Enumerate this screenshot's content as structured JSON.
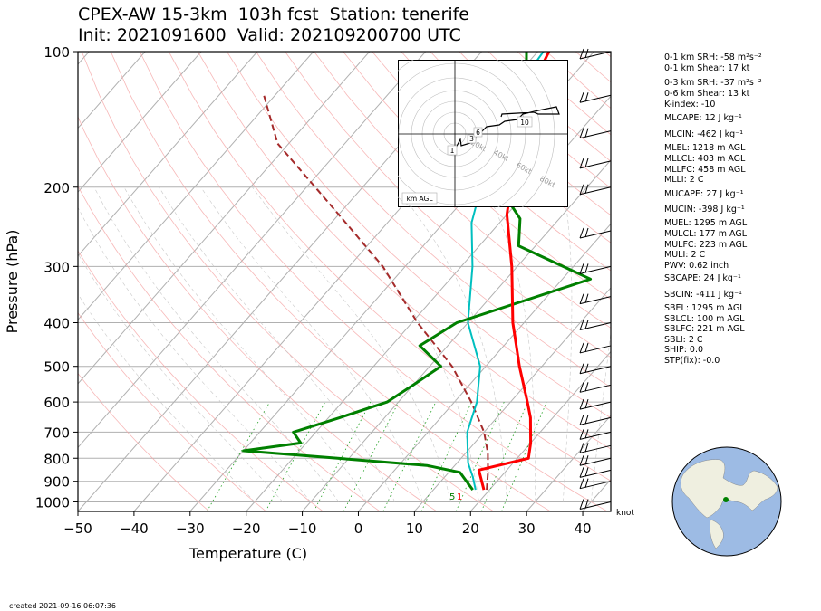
{
  "title_line1": "CPEX-AW 15-3km  103h fcst  Station: tenerife",
  "title_line2": "Init: 2021091600  Valid: 2021092007​00 UTC",
  "created": "created 2021-09-16 06:07:36",
  "indices": [
    "0-1 km SRH: -58 m²s⁻²",
    "0-1 km Shear: 17 kt",
    "0-3 km SRH: -37 m²s⁻²",
    "0-6 km Shear: 13 kt",
    "K-index: -10",
    "MLCAPE: 12 J kg⁻¹",
    "MLCIN: -462 J kg⁻¹",
    "MLEL: 1218 m AGL",
    "MLLCL: 403 m AGL",
    "MLLFC: 458 m AGL",
    "MLLI: 2 C",
    "MUCAPE: 27 J kg⁻¹",
    "MUCIN: -398 J kg⁻¹",
    "MUEL: 1295 m AGL",
    "MULCL: 177 m AGL",
    "MULFC: 223 m AGL",
    "MULI: 2 C",
    "PWV: 0.62 inch",
    "SBCAPE: 24 J kg⁻¹",
    "SBCIN: -411 J kg⁻¹",
    "SBEL: 1295 m AGL",
    "SBLCL: 100 m AGL",
    "SBLFC: 221 m AGL",
    "SBLI: 2 C",
    "SHIP: 0.0",
    "STP(fix): -0.0"
  ],
  "colors": {
    "temperature": "#ff0000",
    "dewpoint": "#008000",
    "wetbulb": "#00bfbf",
    "parcel": "#a52a2a",
    "isobar": "#b0b0b0",
    "dry_adiabat": "#f5a5a5",
    "mixing_ratio": "#22a022",
    "globe_ocean": "#9dbbe4",
    "globe_land": "#efefe0"
  },
  "chart_data": {
    "type": "line",
    "skew": "skew-T log-p",
    "xlabel": "Temperature (C)",
    "ylabel": "Pressure (hPa)",
    "xlim": [
      -50,
      45
    ],
    "ylim": [
      1050,
      100
    ],
    "xticks": [
      "−50",
      "−40",
      "−30",
      "−20",
      "−10",
      "0",
      "10",
      "20",
      "30",
      "40"
    ],
    "yticks": [
      "100",
      "200",
      "300",
      "400",
      "500",
      "600",
      "700",
      "800",
      "900",
      "1000"
    ],
    "wind_unit": "knot",
    "sfc_labels": [
      "5",
      "1"
    ],
    "series": [
      {
        "key": "temperature",
        "points": [
          [
            19,
            940
          ],
          [
            15,
            850
          ],
          [
            22,
            800
          ],
          [
            20,
            740
          ],
          [
            16,
            650
          ],
          [
            13,
            600
          ],
          [
            6,
            500
          ],
          [
            -2,
            400
          ],
          [
            -11,
            300
          ],
          [
            -20,
            230
          ],
          [
            -27,
            175
          ],
          [
            -35,
            125
          ],
          [
            -38,
            100
          ]
        ]
      },
      {
        "key": "dewpoint",
        "points": [
          [
            17,
            940
          ],
          [
            12,
            860
          ],
          [
            5,
            830
          ],
          [
            -12,
            800
          ],
          [
            -30,
            770
          ],
          [
            -21,
            740
          ],
          [
            -24,
            700
          ],
          [
            -18,
            650
          ],
          [
            -12,
            600
          ],
          [
            -10,
            550
          ],
          [
            -8,
            500
          ],
          [
            -15,
            450
          ],
          [
            -12,
            400
          ],
          [
            5,
            320
          ],
          [
            -13,
            270
          ],
          [
            -17,
            235
          ],
          [
            -23,
            210
          ],
          [
            -28,
            180
          ],
          [
            -34,
            130
          ],
          [
            -42,
            100
          ]
        ]
      },
      {
        "key": "wetbulb",
        "points": [
          [
            17.5,
            940
          ],
          [
            15,
            880
          ],
          [
            12,
            820
          ],
          [
            10,
            770
          ],
          [
            7,
            700
          ],
          [
            4,
            600
          ],
          [
            -1,
            500
          ],
          [
            -10,
            400
          ],
          [
            -18,
            300
          ],
          [
            -25,
            240
          ],
          [
            -30,
            190
          ],
          [
            -37,
            140
          ],
          [
            -39,
            100
          ]
        ]
      },
      {
        "key": "parcel",
        "points": [
          [
            19.5,
            940
          ],
          [
            17,
            860
          ],
          [
            14,
            780
          ],
          [
            10,
            700
          ],
          [
            3,
            600
          ],
          [
            -6,
            500
          ],
          [
            -19,
            400
          ],
          [
            -34,
            300
          ],
          [
            -50,
            230
          ],
          [
            -72,
            160
          ],
          [
            -82,
            125
          ]
        ]
      }
    ],
    "wind_barbs_hpa": [
      1000,
      900,
      850,
      800,
      750,
      700,
      650,
      600,
      550,
      500,
      450,
      400,
      350,
      300,
      250,
      200,
      175,
      150,
      125,
      100
    ]
  },
  "hodograph": {
    "ring_labels": [
      "20kt",
      "40kt",
      "60kt",
      "80kt"
    ],
    "height_labels": [
      "1",
      "3",
      "6",
      "10"
    ],
    "units_label": "km AGL"
  }
}
